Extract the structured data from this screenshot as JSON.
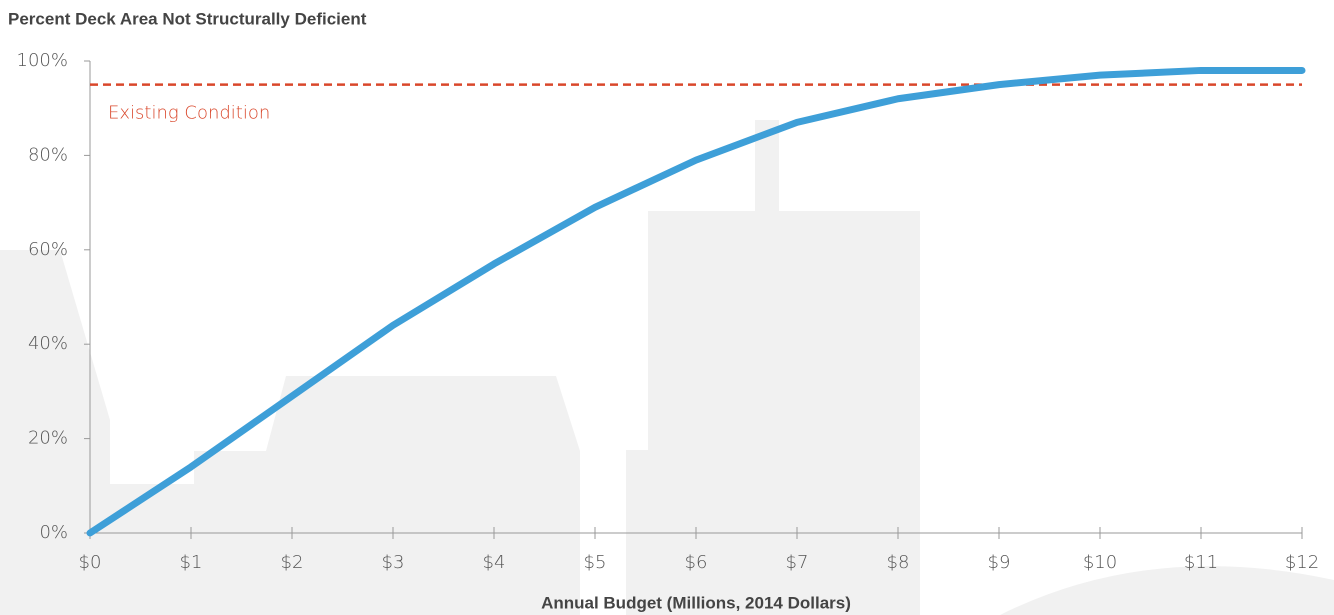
{
  "chart_data": {
    "type": "line",
    "title": "Percent Deck Area Not Structurally Deficient",
    "x_label": "Annual Budget (Millions, 2014 Dollars)",
    "x": [
      0,
      1,
      2,
      3,
      4,
      5,
      6,
      7,
      8,
      9,
      10,
      11,
      12
    ],
    "series": [
      {
        "color": "#3e9fd8",
        "values": [
          0,
          14,
          29,
          44,
          57,
          69,
          79,
          87,
          92,
          95,
          97,
          98,
          98
        ]
      }
    ],
    "reference_line": {
      "value": 95,
      "label": "Existing Condition",
      "color": "#d9472b"
    },
    "xlim": [
      0,
      12
    ],
    "xticks": [
      {
        "value": 0,
        "label": "$0"
      },
      {
        "value": 1,
        "label": "$1"
      },
      {
        "value": 2,
        "label": "$2"
      },
      {
        "value": 3,
        "label": "$3"
      },
      {
        "value": 4,
        "label": "$4"
      },
      {
        "value": 5,
        "label": "$5"
      },
      {
        "value": 6,
        "label": "$6"
      },
      {
        "value": 7,
        "label": "$7"
      },
      {
        "value": 8,
        "label": "$8"
      },
      {
        "value": 9,
        "label": "$9"
      },
      {
        "value": 10,
        "label": "$10"
      },
      {
        "value": 11,
        "label": "$11"
      },
      {
        "value": 12,
        "label": "$12"
      }
    ],
    "ylim": [
      0,
      100
    ],
    "yticks": [
      {
        "value": 0,
        "label": "0%"
      },
      {
        "value": 20,
        "label": "20%"
      },
      {
        "value": 40,
        "label": "40%"
      },
      {
        "value": 60,
        "label": "60%"
      },
      {
        "value": 80,
        "label": "80%"
      },
      {
        "value": 100,
        "label": "100%"
      }
    ]
  }
}
